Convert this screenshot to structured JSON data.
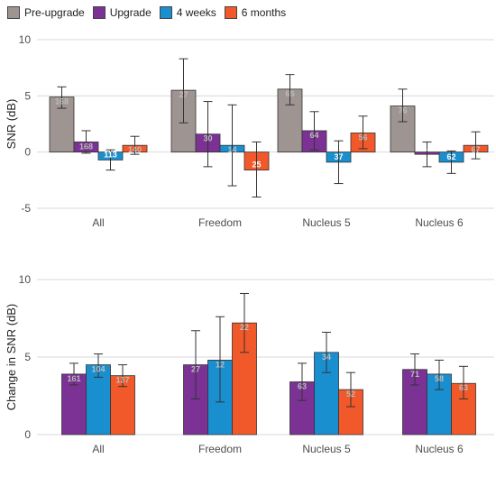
{
  "chart_data": [
    {
      "type": "bar",
      "title": "",
      "xlabel": "",
      "ylabel": "SNR (dB)",
      "ylim": [
        -5,
        10
      ],
      "yticks": [
        -5,
        0,
        5,
        10
      ],
      "grid": true,
      "legend": "top-left",
      "categories": [
        "All",
        "Freedom",
        "Nucleus 5",
        "Nucleus 6"
      ],
      "series": [
        {
          "name": "Pre-upgrade",
          "color": "#9e9593",
          "values": [
            4.9,
            5.5,
            5.6,
            4.1
          ],
          "error_low": [
            3.9,
            2.6,
            4.2,
            2.7
          ],
          "error_high": [
            5.8,
            8.3,
            6.9,
            5.6
          ],
          "n_labels": [
            "168",
            "27",
            "65",
            "76"
          ]
        },
        {
          "name": "Upgrade",
          "color": "#7b3294",
          "values": [
            0.9,
            1.6,
            1.9,
            -0.2
          ],
          "error_low": [
            -0.1,
            -1.3,
            0.2,
            -1.3
          ],
          "error_high": [
            1.9,
            4.5,
            3.6,
            0.9
          ],
          "n_labels": [
            "168",
            "30",
            "64",
            "74"
          ]
        },
        {
          "name": "4 weeks",
          "color": "#1a8fd0",
          "values": [
            -0.7,
            0.6,
            -0.9,
            -0.9
          ],
          "error_low": [
            -1.6,
            -3.0,
            -2.8,
            -1.9
          ],
          "error_high": [
            0.2,
            4.2,
            1.0,
            0.1
          ],
          "n_labels": [
            "113",
            "14",
            "37",
            "62"
          ]
        },
        {
          "name": "6 months",
          "color": "#f2592a",
          "values": [
            0.6,
            -1.6,
            1.7,
            0.6
          ],
          "error_low": [
            -0.2,
            -4.0,
            0.3,
            -0.6
          ],
          "error_high": [
            1.4,
            0.9,
            3.2,
            1.8
          ],
          "n_labels": [
            "140",
            "25",
            "56",
            "67"
          ]
        }
      ]
    },
    {
      "type": "bar",
      "title": "",
      "xlabel": "",
      "ylabel": "Change in SNR (dB)",
      "ylim": [
        0,
        10
      ],
      "yticks": [
        0,
        5,
        10
      ],
      "grid": true,
      "categories": [
        "All",
        "Freedom",
        "Nucleus 5",
        "Nucleus 6"
      ],
      "series": [
        {
          "name": "Upgrade",
          "color": "#7b3294",
          "values": [
            3.9,
            4.5,
            3.4,
            4.2
          ],
          "error_low": [
            3.2,
            2.3,
            2.2,
            3.2
          ],
          "error_high": [
            4.6,
            6.7,
            4.6,
            5.2
          ],
          "n_labels": [
            "161",
            "27",
            "63",
            "71"
          ]
        },
        {
          "name": "4 weeks",
          "color": "#1a8fd0",
          "values": [
            4.5,
            4.8,
            5.3,
            3.9
          ],
          "error_low": [
            3.7,
            2.1,
            4.0,
            2.9
          ],
          "error_high": [
            5.2,
            7.6,
            6.6,
            4.8
          ],
          "n_labels": [
            "104",
            "12",
            "34",
            "58"
          ]
        },
        {
          "name": "6 months",
          "color": "#f2592a",
          "values": [
            3.8,
            7.2,
            2.9,
            3.3
          ],
          "error_low": [
            3.1,
            5.3,
            1.8,
            2.3
          ],
          "error_high": [
            4.5,
            9.1,
            4.0,
            4.4
          ],
          "n_labels": [
            "137",
            "22",
            "52",
            "63"
          ]
        }
      ]
    }
  ]
}
